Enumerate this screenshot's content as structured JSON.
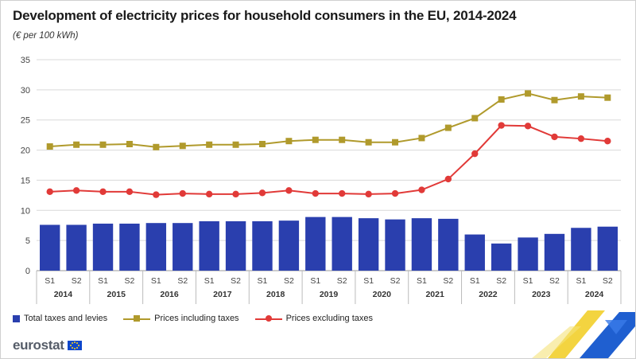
{
  "header": {
    "title": "Development of electricity prices for household consumers in the EU, 2014-2024",
    "subtitle": "(€ per 100 kWh)"
  },
  "chart_data": {
    "type": "bar+line",
    "title": "Development of electricity prices for household consumers in the EU, 2014-2024",
    "ylabel": "€ per 100 kWh",
    "ylim": [
      0,
      35
    ],
    "yticks": [
      0,
      5,
      10,
      15,
      20,
      25,
      30,
      35
    ],
    "grid": true,
    "legend_position": "bottom-left",
    "semesters": [
      "S1",
      "S2",
      "S1",
      "S2",
      "S1",
      "S2",
      "S1",
      "S2",
      "S1",
      "S2",
      "S1",
      "S2",
      "S1",
      "S2",
      "S1",
      "S2",
      "S1",
      "S2",
      "S1",
      "S2",
      "S1",
      "S2"
    ],
    "years": [
      "2014",
      "2015",
      "2016",
      "2017",
      "2018",
      "2019",
      "2020",
      "2021",
      "2022",
      "2023",
      "2024"
    ],
    "series": [
      {
        "name": "Total taxes and levies",
        "kind": "bar",
        "color": "#2a3fae",
        "values": [
          7.6,
          7.6,
          7.8,
          7.8,
          7.9,
          7.9,
          8.2,
          8.2,
          8.2,
          8.3,
          8.9,
          8.9,
          8.7,
          8.5,
          8.7,
          8.6,
          6.0,
          4.5,
          5.5,
          6.1,
          7.1,
          7.3
        ]
      },
      {
        "name": "Prices including taxes",
        "kind": "line",
        "marker": "square",
        "color": "#b09a2c",
        "values": [
          20.6,
          20.9,
          20.9,
          21.0,
          20.5,
          20.7,
          20.9,
          20.9,
          21.0,
          21.5,
          21.7,
          21.7,
          21.3,
          21.3,
          22.0,
          23.7,
          25.3,
          28.4,
          29.4,
          28.3,
          28.9,
          28.7
        ]
      },
      {
        "name": "Prices excluding taxes",
        "kind": "line",
        "marker": "circle",
        "color": "#e13a38",
        "values": [
          13.1,
          13.3,
          13.1,
          13.1,
          12.6,
          12.8,
          12.7,
          12.7,
          12.9,
          13.3,
          12.8,
          12.8,
          12.7,
          12.8,
          13.4,
          15.2,
          19.4,
          24.1,
          24.0,
          22.2,
          21.9,
          21.5
        ]
      }
    ]
  },
  "legend": {
    "bar_label": "Total taxes and levies",
    "incl_label": "Prices including taxes",
    "excl_label": "Prices excluding taxes"
  },
  "footer": {
    "logo_text": "eurostat"
  },
  "colors": {
    "bar": "#2a3fae",
    "incl": "#b09a2c",
    "excl": "#e13a38",
    "grid": "#d9d9d9",
    "corner_yellow": "#f2cf2b",
    "corner_blue": "#1f5fd0"
  }
}
